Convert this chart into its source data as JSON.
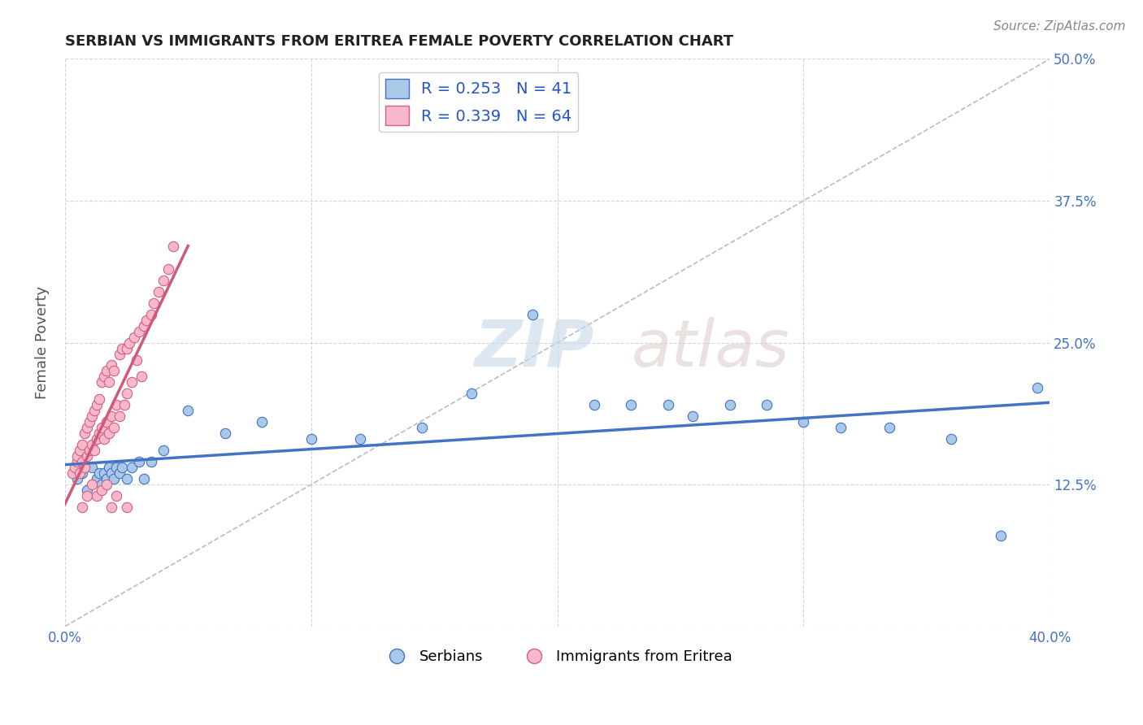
{
  "title": "SERBIAN VS IMMIGRANTS FROM ERITREA FEMALE POVERTY CORRELATION CHART",
  "source": "Source: ZipAtlas.com",
  "ylabel": "Female Poverty",
  "xlim": [
    0.0,
    0.4
  ],
  "ylim": [
    0.0,
    0.5
  ],
  "x_ticks": [
    0.0,
    0.1,
    0.2,
    0.3,
    0.4
  ],
  "y_ticks": [
    0.0,
    0.125,
    0.25,
    0.375,
    0.5
  ],
  "series_serbian": {
    "R": 0.253,
    "N": 41,
    "color": "#aac8e8",
    "edge_color": "#4472c4",
    "line_color": "#4472c4",
    "label": "Serbians"
  },
  "series_eritrea": {
    "R": 0.339,
    "N": 64,
    "color": "#f8b8cc",
    "edge_color": "#d06080",
    "line_color": "#d05878",
    "label": "Immigrants from Eritrea"
  },
  "watermark_zip": "ZIP",
  "watermark_atlas": "atlas",
  "background_color": "#ffffff",
  "grid_color": "#cccccc",
  "serbian_x": [
    0.005,
    0.007,
    0.009,
    0.011,
    0.013,
    0.014,
    0.015,
    0.016,
    0.017,
    0.018,
    0.019,
    0.02,
    0.021,
    0.022,
    0.023,
    0.025,
    0.027,
    0.03,
    0.032,
    0.035,
    0.04,
    0.05,
    0.065,
    0.08,
    0.1,
    0.12,
    0.145,
    0.165,
    0.19,
    0.215,
    0.23,
    0.245,
    0.255,
    0.27,
    0.285,
    0.3,
    0.315,
    0.335,
    0.36,
    0.38,
    0.395
  ],
  "serbian_y": [
    0.13,
    0.135,
    0.12,
    0.14,
    0.13,
    0.135,
    0.125,
    0.135,
    0.13,
    0.14,
    0.135,
    0.13,
    0.14,
    0.135,
    0.14,
    0.13,
    0.14,
    0.145,
    0.13,
    0.145,
    0.155,
    0.19,
    0.17,
    0.18,
    0.165,
    0.165,
    0.175,
    0.205,
    0.275,
    0.195,
    0.195,
    0.195,
    0.185,
    0.195,
    0.195,
    0.18,
    0.175,
    0.175,
    0.165,
    0.08,
    0.21
  ],
  "eritrea_x": [
    0.003,
    0.004,
    0.005,
    0.005,
    0.006,
    0.006,
    0.007,
    0.007,
    0.008,
    0.008,
    0.009,
    0.009,
    0.01,
    0.01,
    0.011,
    0.011,
    0.012,
    0.012,
    0.013,
    0.013,
    0.014,
    0.014,
    0.015,
    0.015,
    0.016,
    0.016,
    0.017,
    0.017,
    0.018,
    0.018,
    0.019,
    0.019,
    0.02,
    0.02,
    0.021,
    0.022,
    0.022,
    0.023,
    0.024,
    0.025,
    0.025,
    0.026,
    0.027,
    0.028,
    0.029,
    0.03,
    0.031,
    0.032,
    0.033,
    0.035,
    0.036,
    0.038,
    0.04,
    0.042,
    0.044,
    0.007,
    0.009,
    0.011,
    0.013,
    0.015,
    0.017,
    0.019,
    0.021,
    0.025
  ],
  "eritrea_y": [
    0.135,
    0.14,
    0.145,
    0.15,
    0.155,
    0.135,
    0.145,
    0.16,
    0.14,
    0.17,
    0.15,
    0.175,
    0.155,
    0.18,
    0.16,
    0.185,
    0.155,
    0.19,
    0.165,
    0.195,
    0.17,
    0.2,
    0.175,
    0.215,
    0.165,
    0.22,
    0.18,
    0.225,
    0.17,
    0.215,
    0.185,
    0.23,
    0.175,
    0.225,
    0.195,
    0.24,
    0.185,
    0.245,
    0.195,
    0.245,
    0.205,
    0.25,
    0.215,
    0.255,
    0.235,
    0.26,
    0.22,
    0.265,
    0.27,
    0.275,
    0.285,
    0.295,
    0.305,
    0.315,
    0.335,
    0.105,
    0.115,
    0.125,
    0.115,
    0.12,
    0.125,
    0.105,
    0.115,
    0.105
  ],
  "eritrea_trend_x0": 0.0,
  "eritrea_trend_x1": 0.05,
  "serbian_trend_x0": 0.0,
  "serbian_trend_x1": 0.4
}
